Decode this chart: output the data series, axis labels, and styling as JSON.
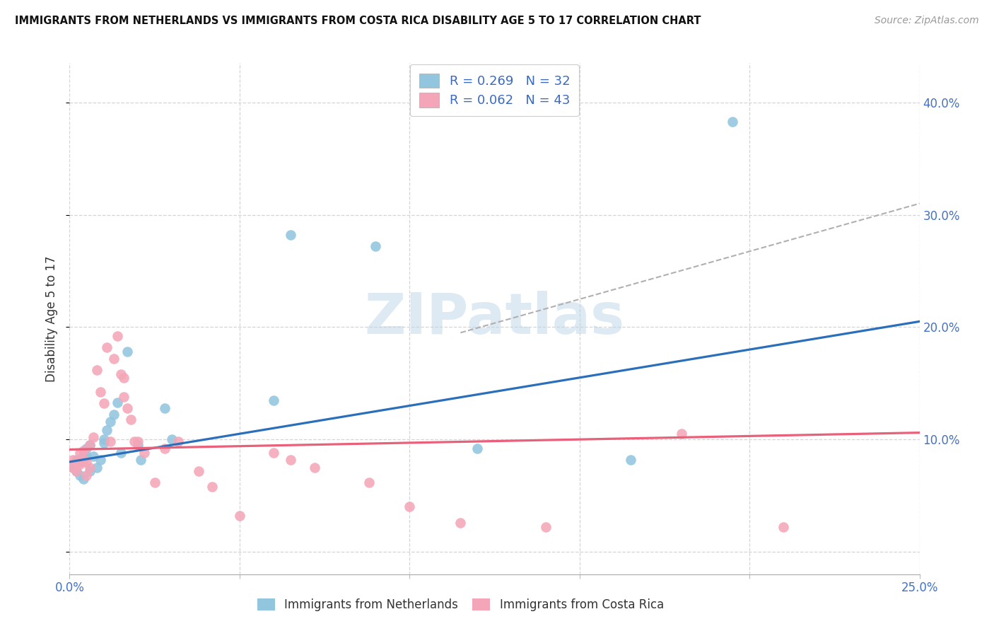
{
  "title": "IMMIGRANTS FROM NETHERLANDS VS IMMIGRANTS FROM COSTA RICA DISABILITY AGE 5 TO 17 CORRELATION CHART",
  "source": "Source: ZipAtlas.com",
  "ylabel": "Disability Age 5 to 17",
  "xlim": [
    0.0,
    0.25
  ],
  "ylim": [
    -0.02,
    0.435
  ],
  "color_netherlands": "#92c5de",
  "color_costa_rica": "#f4a6b8",
  "color_line_netherlands": "#2b6fba",
  "color_line_costa_rica": "#e8607a",
  "watermark_text": "ZIPatlas",
  "legend_label1": "Immigrants from Netherlands",
  "legend_label2": "Immigrants from Costa Rica",
  "nl_line_x0": 0.0,
  "nl_line_y0": 0.08,
  "nl_line_x1": 0.25,
  "nl_line_y1": 0.205,
  "cr_line_x0": 0.0,
  "cr_line_y0": 0.091,
  "cr_line_x1": 0.25,
  "cr_line_y1": 0.106,
  "dash_line_x0": 0.115,
  "dash_line_y0": 0.195,
  "dash_line_x1": 0.25,
  "dash_line_y1": 0.31,
  "nl_x": [
    0.001,
    0.002,
    0.002,
    0.003,
    0.003,
    0.004,
    0.004,
    0.005,
    0.005,
    0.006,
    0.006,
    0.007,
    0.008,
    0.009,
    0.01,
    0.01,
    0.011,
    0.012,
    0.013,
    0.014,
    0.015,
    0.017,
    0.02,
    0.021,
    0.028,
    0.03,
    0.06,
    0.065,
    0.09,
    0.12,
    0.165,
    0.195
  ],
  "nl_y": [
    0.075,
    0.082,
    0.072,
    0.068,
    0.08,
    0.065,
    0.085,
    0.092,
    0.085,
    0.095,
    0.072,
    0.085,
    0.075,
    0.082,
    0.097,
    0.1,
    0.108,
    0.116,
    0.122,
    0.133,
    0.088,
    0.178,
    0.095,
    0.082,
    0.128,
    0.1,
    0.135,
    0.282,
    0.272,
    0.092,
    0.082,
    0.383
  ],
  "cr_x": [
    0.001,
    0.001,
    0.002,
    0.002,
    0.003,
    0.003,
    0.004,
    0.004,
    0.005,
    0.005,
    0.006,
    0.006,
    0.007,
    0.008,
    0.009,
    0.01,
    0.011,
    0.012,
    0.013,
    0.014,
    0.015,
    0.016,
    0.016,
    0.017,
    0.018,
    0.019,
    0.02,
    0.022,
    0.025,
    0.028,
    0.032,
    0.038,
    0.042,
    0.05,
    0.06,
    0.065,
    0.072,
    0.088,
    0.1,
    0.115,
    0.14,
    0.18,
    0.21
  ],
  "cr_y": [
    0.082,
    0.075,
    0.08,
    0.072,
    0.088,
    0.078,
    0.09,
    0.082,
    0.068,
    0.08,
    0.095,
    0.075,
    0.102,
    0.162,
    0.142,
    0.132,
    0.182,
    0.098,
    0.172,
    0.192,
    0.158,
    0.138,
    0.155,
    0.128,
    0.118,
    0.098,
    0.098,
    0.088,
    0.062,
    0.092,
    0.098,
    0.072,
    0.058,
    0.032,
    0.088,
    0.082,
    0.075,
    0.062,
    0.04,
    0.026,
    0.022,
    0.105,
    0.022
  ]
}
